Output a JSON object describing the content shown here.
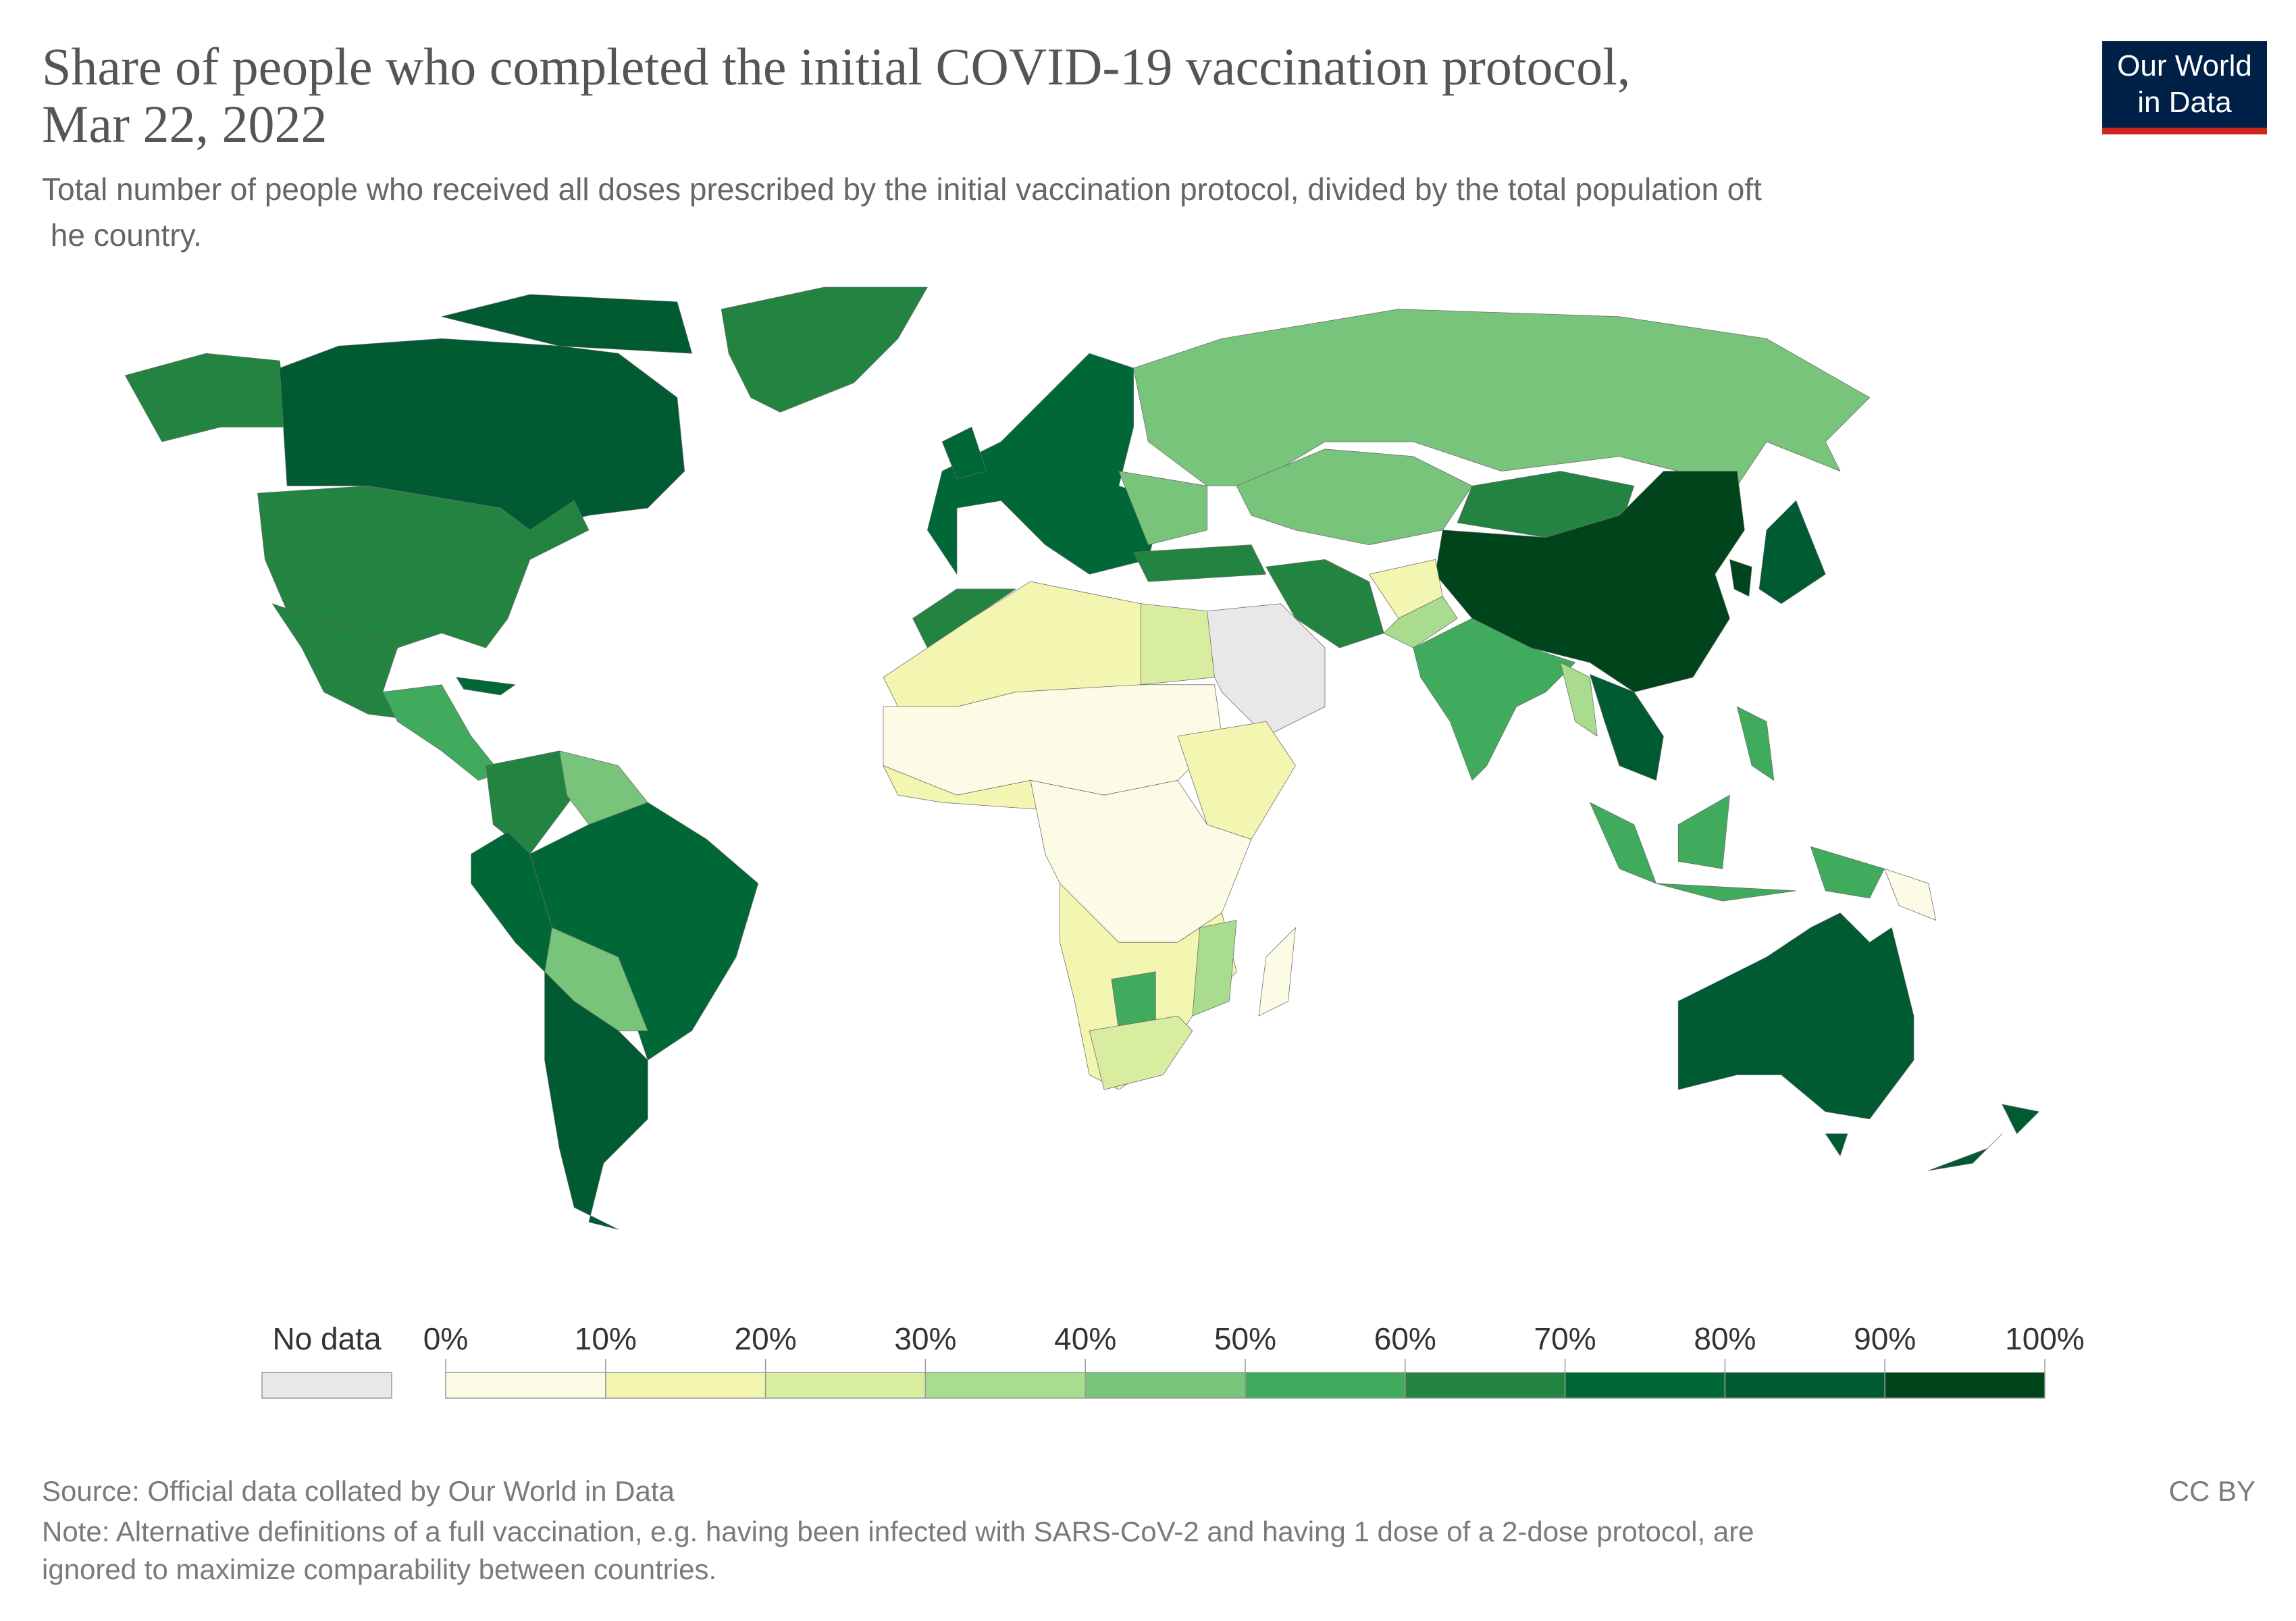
{
  "header": {
    "title": [
      "Share of people who completed the initial COVID-19 vaccination protocol,",
      "Mar 22, 2022"
    ],
    "subtitle": [
      "Total number of people who received all doses prescribed by the initial vaccination protocol, divided by the total population oft",
      " he country."
    ],
    "logo": [
      "Our World",
      "in Data"
    ]
  },
  "legend": {
    "no_data_label": "No data",
    "no_data_color": "#e8e8e8",
    "ticks": [
      {
        "value": 0,
        "label": "0%"
      },
      {
        "value": 10,
        "label": "10%"
      },
      {
        "value": 20,
        "label": "20%"
      },
      {
        "value": 30,
        "label": "30%"
      },
      {
        "value": 40,
        "label": "40%"
      },
      {
        "value": 50,
        "label": "50%"
      },
      {
        "value": 60,
        "label": "60%"
      },
      {
        "value": 70,
        "label": "70%"
      },
      {
        "value": 80,
        "label": "80%"
      },
      {
        "value": 90,
        "label": "90%"
      },
      {
        "value": 100,
        "label": "100%"
      }
    ],
    "colors": [
      "#fcfbe6",
      "#f3f6b1",
      "#d8eda0",
      "#a9dc8e",
      "#77c47a",
      "#41ab5d",
      "#238442",
      "#006837",
      "#005a32",
      "#00441b"
    ]
  },
  "footer": {
    "source": "Source: Official data collated by Our World in Data",
    "license": "CC BY",
    "note": [
      "Note: Alternative definitions of a full vaccination, e.g. having been infected with SARS-CoV-2 and having 1 dose of a 2-dose protocol, are",
      "ignored to maximize comparability between countries."
    ]
  }
}
